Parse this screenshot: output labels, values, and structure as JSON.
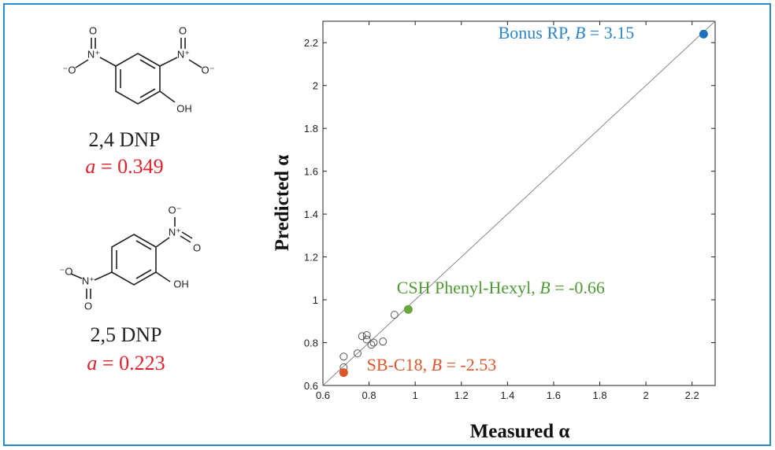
{
  "compounds": [
    {
      "name": "2,4 DNP",
      "a_label": [
        "a",
        " = 0.349"
      ],
      "atoms": [
        "O",
        "N⁺",
        "⁻O",
        "O",
        "N⁺",
        "O⁻",
        "OH"
      ]
    },
    {
      "name": "2,5 DNP",
      "a_label": [
        "a",
        " = 0.223"
      ],
      "atoms": [
        "O⁻",
        "N⁺",
        "O",
        "OH",
        "⁻O",
        "N⁺",
        "O"
      ]
    }
  ],
  "chart_data": {
    "type": "scatter",
    "xlabel": "Measured α",
    "ylabel": "Predicted α",
    "xlim": [
      0.6,
      2.3
    ],
    "ylim": [
      0.6,
      2.3
    ],
    "xticks": [
      0.6,
      0.8,
      1,
      1.2,
      1.4,
      1.6,
      1.8,
      2,
      2.2
    ],
    "yticks": [
      0.6,
      0.8,
      1,
      1.2,
      1.4,
      1.6,
      1.8,
      2,
      2.2
    ],
    "diagonal": true,
    "series": [
      {
        "color": "#555555",
        "filled": false,
        "x": [
          0.69,
          0.69,
          0.75,
          0.77,
          0.79,
          0.79,
          0.81,
          0.82,
          0.86,
          0.91
        ],
        "values": [
          0.735,
          0.685,
          0.75,
          0.83,
          0.835,
          0.815,
          0.79,
          0.8,
          0.805,
          0.93
        ]
      },
      {
        "color": "#e0562a",
        "filled": true,
        "x": [
          0.69
        ],
        "values": [
          0.66
        ]
      },
      {
        "color": "#6aa63a",
        "filled": true,
        "x": [
          0.97
        ],
        "values": [
          0.955
        ]
      },
      {
        "color": "#1f6fc0",
        "filled": true,
        "x": [
          2.25
        ],
        "values": [
          2.24
        ]
      }
    ],
    "annotations": [
      {
        "parts": [
          "Bonus RP, ",
          "B",
          " = 3.15"
        ],
        "color": "#2b85c8",
        "x": 1.36,
        "y": 2.22
      },
      {
        "parts": [
          "CSH Phenyl-Hexyl, ",
          "B",
          " = -0.66"
        ],
        "color": "#4f9a34",
        "x": 0.92,
        "y": 1.03
      },
      {
        "parts": [
          "SB-C18, ",
          "B",
          " = -2.53"
        ],
        "color": "#e0562a",
        "x": 0.79,
        "y": 0.67
      }
    ]
  }
}
